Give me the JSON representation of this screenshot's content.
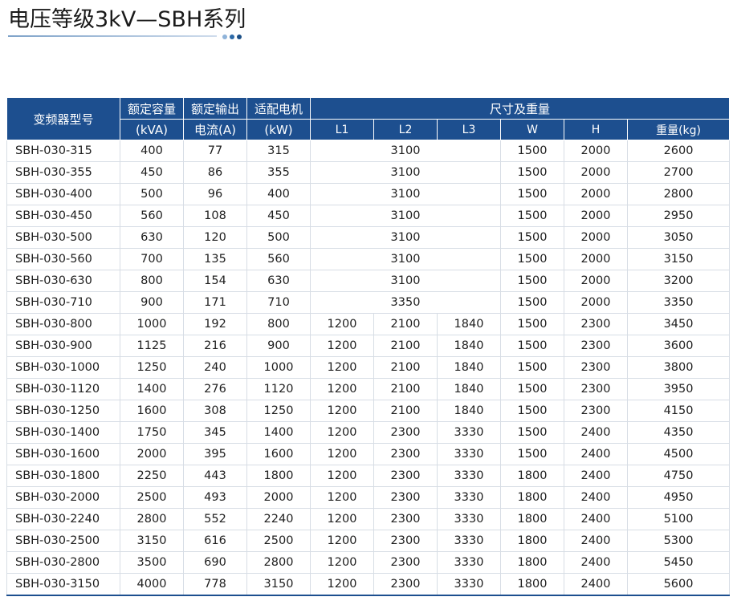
{
  "title": "电压等级3kV—SBH系列",
  "colors": {
    "header_bg": "#1d4f8f",
    "accent_dots": [
      "#8fb3d9",
      "#2d6aa8",
      "#1c4f86"
    ]
  },
  "table": {
    "headers": {
      "model": "变频器型号",
      "capacity_1": "额定容量",
      "capacity_2": "(kVA)",
      "current_1": "额定输出",
      "current_2": "电流(A)",
      "motor_1": "适配电机",
      "motor_2": "(kW)",
      "dims": "尺寸及重量",
      "l1": "L1",
      "l2": "L2",
      "l3": "L3",
      "w": "W",
      "h": "H",
      "weight": "重量(kg)"
    },
    "rows": [
      {
        "model": "SBH-030-315",
        "kva": "400",
        "amp": "77",
        "kw": "315",
        "l_combined": "3100",
        "w": "1500",
        "h": "2000",
        "kg": "2600"
      },
      {
        "model": "SBH-030-355",
        "kva": "450",
        "amp": "86",
        "kw": "355",
        "l_combined": "3100",
        "w": "1500",
        "h": "2000",
        "kg": "2700"
      },
      {
        "model": "SBH-030-400",
        "kva": "500",
        "amp": "96",
        "kw": "400",
        "l_combined": "3100",
        "w": "1500",
        "h": "2000",
        "kg": "2800"
      },
      {
        "model": "SBH-030-450",
        "kva": "560",
        "amp": "108",
        "kw": "450",
        "l_combined": "3100",
        "w": "1500",
        "h": "2000",
        "kg": "2950"
      },
      {
        "model": "SBH-030-500",
        "kva": "630",
        "amp": "120",
        "kw": "500",
        "l_combined": "3100",
        "w": "1500",
        "h": "2000",
        "kg": "3050"
      },
      {
        "model": "SBH-030-560",
        "kva": "700",
        "amp": "135",
        "kw": "560",
        "l_combined": "3100",
        "w": "1500",
        "h": "2000",
        "kg": "3150"
      },
      {
        "model": "SBH-030-630",
        "kva": "800",
        "amp": "154",
        "kw": "630",
        "l_combined": "3100",
        "w": "1500",
        "h": "2000",
        "kg": "3200"
      },
      {
        "model": "SBH-030-710",
        "kva": "900",
        "amp": "171",
        "kw": "710",
        "l_combined": "3350",
        "w": "1500",
        "h": "2000",
        "kg": "3350"
      },
      {
        "model": "SBH-030-800",
        "kva": "1000",
        "amp": "192",
        "kw": "800",
        "l1": "1200",
        "l2": "2100",
        "l3": "1840",
        "w": "1500",
        "h": "2300",
        "kg": "3450"
      },
      {
        "model": "SBH-030-900",
        "kva": "1125",
        "amp": "216",
        "kw": "900",
        "l1": "1200",
        "l2": "2100",
        "l3": "1840",
        "w": "1500",
        "h": "2300",
        "kg": "3600"
      },
      {
        "model": "SBH-030-1000",
        "kva": "1250",
        "amp": "240",
        "kw": "1000",
        "l1": "1200",
        "l2": "2100",
        "l3": "1840",
        "w": "1500",
        "h": "2300",
        "kg": "3800"
      },
      {
        "model": "SBH-030-1120",
        "kva": "1400",
        "amp": "276",
        "kw": "1120",
        "l1": "1200",
        "l2": "2100",
        "l3": "1840",
        "w": "1500",
        "h": "2300",
        "kg": "3950"
      },
      {
        "model": "SBH-030-1250",
        "kva": "1600",
        "amp": "308",
        "kw": "1250",
        "l1": "1200",
        "l2": "2100",
        "l3": "1840",
        "w": "1500",
        "h": "2300",
        "kg": "4150"
      },
      {
        "model": "SBH-030-1400",
        "kva": "1750",
        "amp": "345",
        "kw": "1400",
        "l1": "1200",
        "l2": "2300",
        "l3": "3330",
        "w": "1500",
        "h": "2400",
        "kg": "4350"
      },
      {
        "model": "SBH-030-1600",
        "kva": "2000",
        "amp": "395",
        "kw": "1600",
        "l1": "1200",
        "l2": "2300",
        "l3": "3330",
        "w": "1500",
        "h": "2400",
        "kg": "4500"
      },
      {
        "model": "SBH-030-1800",
        "kva": "2250",
        "amp": "443",
        "kw": "1800",
        "l1": "1200",
        "l2": "2300",
        "l3": "3330",
        "w": "1800",
        "h": "2400",
        "kg": "4750"
      },
      {
        "model": "SBH-030-2000",
        "kva": "2500",
        "amp": "493",
        "kw": "2000",
        "l1": "1200",
        "l2": "2300",
        "l3": "3330",
        "w": "1800",
        "h": "2400",
        "kg": "4950"
      },
      {
        "model": "SBH-030-2240",
        "kva": "2800",
        "amp": "552",
        "kw": "2240",
        "l1": "1200",
        "l2": "2300",
        "l3": "3330",
        "w": "1800",
        "h": "2400",
        "kg": "5100"
      },
      {
        "model": "SBH-030-2500",
        "kva": "3150",
        "amp": "616",
        "kw": "2500",
        "l1": "1200",
        "l2": "2300",
        "l3": "3330",
        "w": "1800",
        "h": "2400",
        "kg": "5300"
      },
      {
        "model": "SBH-030-2800",
        "kva": "3500",
        "amp": "690",
        "kw": "2800",
        "l1": "1200",
        "l2": "2300",
        "l3": "3330",
        "w": "1800",
        "h": "2400",
        "kg": "5450"
      },
      {
        "model": "SBH-030-3150",
        "kva": "4000",
        "amp": "778",
        "kw": "3150",
        "l1": "1200",
        "l2": "2300",
        "l3": "3330",
        "w": "1800",
        "h": "2400",
        "kg": "5600"
      }
    ]
  }
}
